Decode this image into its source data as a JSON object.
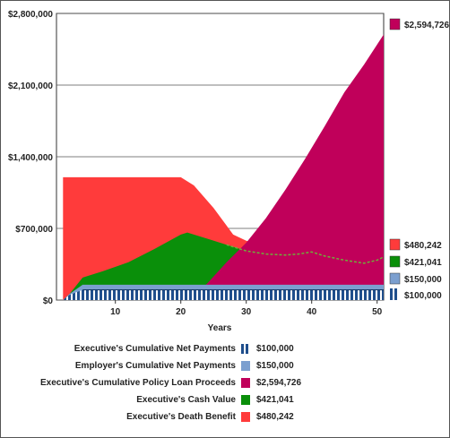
{
  "chart_data": {
    "type": "area",
    "xlabel": "Years",
    "ylabel": "",
    "xlim": [
      1,
      51
    ],
    "ylim": [
      0,
      2800000
    ],
    "x_ticks": [
      10,
      20,
      30,
      40,
      50
    ],
    "y_ticks": [
      {
        "value": 0,
        "label": "$0"
      },
      {
        "value": 700000,
        "label": "$700,000"
      },
      {
        "value": 1400000,
        "label": "$1,400,000"
      },
      {
        "value": 2100000,
        "label": "$2,100,000"
      },
      {
        "value": 2800000,
        "label": "$2,800,000"
      }
    ],
    "grid": "horizontal",
    "series": [
      {
        "name": "Executive's Death Benefit",
        "color": "#ff3b3b",
        "x": [
          2,
          3,
          5,
          10,
          15,
          20,
          22,
          25,
          28,
          30,
          32,
          35,
          38,
          40,
          43,
          45,
          48,
          50,
          51
        ],
        "values": [
          1200000,
          1200000,
          1200000,
          1200000,
          1200000,
          1200000,
          1120000,
          900000,
          640000,
          580000,
          540000,
          540000,
          560000,
          600000,
          580000,
          585000,
          560000,
          500000,
          480242
        ]
      },
      {
        "name": "Executive's Cash Value",
        "color": "#0a8f0a",
        "x": [
          2,
          3,
          5,
          8,
          12,
          16,
          20,
          21,
          24,
          27,
          30,
          33,
          36,
          38,
          40,
          42,
          45,
          48,
          50,
          51
        ],
        "values": [
          0,
          60000,
          220000,
          280000,
          370000,
          500000,
          640000,
          660000,
          600000,
          540000,
          480000,
          450000,
          440000,
          450000,
          470000,
          430000,
          390000,
          360000,
          390000,
          421041
        ]
      },
      {
        "name": "Executive's Cumulative Policy Loan Proceeds",
        "color": "#c0005a",
        "x": [
          21,
          24,
          27,
          30,
          33,
          36,
          39,
          42,
          45,
          48,
          51
        ],
        "values": [
          0,
          160000,
          370000,
          560000,
          800000,
          1080000,
          1380000,
          1700000,
          2030000,
          2300000,
          2594726
        ]
      },
      {
        "name": "Employer's Cumulative Net Payments",
        "color": "#7b9fcf",
        "x": [
          2,
          3,
          5,
          51
        ],
        "values": [
          0,
          60000,
          150000,
          150000
        ]
      },
      {
        "name": "Executive's Cumulative Net Payments",
        "color": "#1f4e8c",
        "x": [
          2,
          3,
          5,
          51
        ],
        "values": [
          0,
          50000,
          100000,
          100000
        ]
      }
    ],
    "end_values": [
      {
        "series": "Executive's Cumulative Policy Loan Proceeds",
        "label": "$2,594,726",
        "color": "#c0005a"
      },
      {
        "series": "Executive's Death Benefit",
        "label": "$480,242",
        "color": "#ff3b3b"
      },
      {
        "series": "Executive's Cash Value",
        "label": "$421,041",
        "color": "#0a8f0a"
      },
      {
        "series": "Employer's Cumulative Net Payments",
        "label": "$150,000",
        "color": "#7b9fcf"
      },
      {
        "series": "Executive's Cumulative Net Payments",
        "label": "$100,000",
        "color": "#1f4e8c"
      }
    ],
    "legend": {
      "placement": "bottom",
      "entries": [
        {
          "label": "Executive's Cumulative Net Payments",
          "value": "$100,000",
          "color": "#1f4e8c",
          "style": "bars"
        },
        {
          "label": "Employer's Cumulative Net Payments",
          "value": "$150,000",
          "color": "#7b9fcf",
          "style": "solid"
        },
        {
          "label": "Executive's Cumulative Policy Loan Proceeds",
          "value": "$2,594,726",
          "color": "#c0005a",
          "style": "solid"
        },
        {
          "label": "Executive's Cash Value",
          "value": "$421,041",
          "color": "#0a8f0a",
          "style": "solid"
        },
        {
          "label": "Executive's Death Benefit",
          "value": "$480,242",
          "color": "#ff3b3b",
          "style": "solid"
        }
      ]
    }
  }
}
